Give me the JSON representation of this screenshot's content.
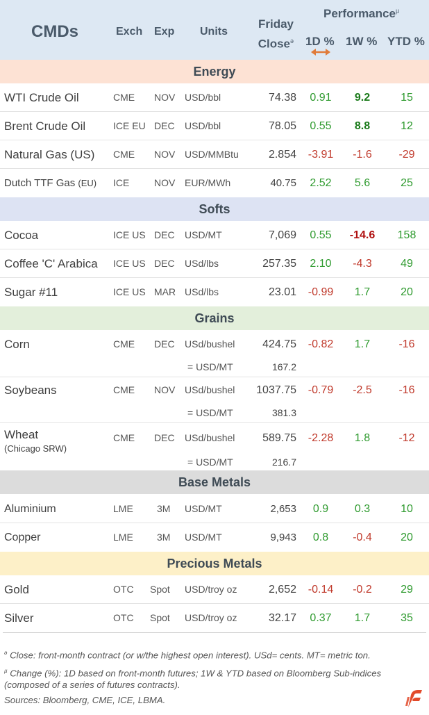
{
  "header": {
    "title": "CMDs",
    "exch": "Exch",
    "exp": "Exp",
    "units": "Units",
    "close_line1": "Friday",
    "close_line2": "Close",
    "close_marker": "ə",
    "performance": "Performance",
    "performance_marker": "µ",
    "d1": "1D %",
    "w1": "1W %",
    "ytd": "YTD %"
  },
  "colors": {
    "header_bg": "#dde8f3",
    "energy_bg": "#fde2d4",
    "softs_bg": "#dde3f3",
    "grains_bg": "#e3efdb",
    "base_metals_bg": "#dcdcdc",
    "precious_metals_bg": "#fdf0c8",
    "positive": "#2e9a2e",
    "negative": "#c0392b",
    "sort_arrow": "#e07b3a",
    "logo": "#e24a2a"
  },
  "sections": {
    "energy": "Energy",
    "softs": "Softs",
    "grains": "Grains",
    "base_metals": "Base Metals",
    "precious_metals": "Precious Metals"
  },
  "rows": {
    "wti": {
      "name": "WTI Crude Oil",
      "exch": "CME",
      "exp": "NOV",
      "units": "USD/bbl",
      "close": "74.38",
      "d1": "0.91",
      "w1": "9.2",
      "ytd": "15"
    },
    "brent": {
      "name": "Brent Crude Oil",
      "exch": "ICE EU",
      "exp": "DEC",
      "units": "USD/bbl",
      "close": "78.05",
      "d1": "0.55",
      "w1": "8.8",
      "ytd": "12"
    },
    "natgas": {
      "name": "Natural Gas (US)",
      "exch": "CME",
      "exp": "NOV",
      "units": "USD/MMBtu",
      "close": "2.854",
      "d1": "-3.91",
      "w1": "-1.6",
      "ytd": "-29"
    },
    "ttf": {
      "name": "Dutch TTF Gas",
      "name_suffix": "(EU)",
      "exch": "ICE",
      "exp": "NOV",
      "units": "EUR/MWh",
      "close": "40.75",
      "d1": "2.52",
      "w1": "5.6",
      "ytd": "25"
    },
    "cocoa": {
      "name": "Cocoa",
      "exch": "ICE US",
      "exp": "DEC",
      "units": "USD/MT",
      "close": "7,069",
      "d1": "0.55",
      "w1": "-14.6",
      "ytd": "158"
    },
    "coffee": {
      "name": "Coffee 'C' Arabica",
      "exch": "ICE US",
      "exp": "DEC",
      "units": "USd/lbs",
      "close": "257.35",
      "d1": "2.10",
      "w1": "-4.3",
      "ytd": "49"
    },
    "sugar": {
      "name": "Sugar #11",
      "exch": "ICE US",
      "exp": "MAR",
      "units": "USd/lbs",
      "close": "23.01",
      "d1": "-0.99",
      "w1": "1.7",
      "ytd": "20"
    },
    "corn": {
      "name": "Corn",
      "exch": "CME",
      "exp": "DEC",
      "units": "USd/bushel",
      "close": "424.75",
      "d1": "-0.82",
      "w1": "1.7",
      "ytd": "-16",
      "conv_units": "= USD/MT",
      "conv_close": "167.2"
    },
    "soybeans": {
      "name": "Soybeans",
      "exch": "CME",
      "exp": "NOV",
      "units": "USd/bushel",
      "close": "1037.75",
      "d1": "-0.79",
      "w1": "-2.5",
      "ytd": "-16",
      "conv_units": "= USD/MT",
      "conv_close": "381.3"
    },
    "wheat": {
      "name": "Wheat",
      "name_suffix": "(Chicago SRW)",
      "exch": "CME",
      "exp": "DEC",
      "units": "USd/bushel",
      "close": "589.75",
      "d1": "-2.28",
      "w1": "1.8",
      "ytd": "-12",
      "conv_units": "= USD/MT",
      "conv_close": "216.7"
    },
    "aluminium": {
      "name": "Aluminium",
      "exch": "LME",
      "exp": "3M",
      "units": "USD/MT",
      "close": "2,653",
      "d1": "0.9",
      "w1": "0.3",
      "ytd": "10"
    },
    "copper": {
      "name": "Copper",
      "exch": "LME",
      "exp": "3M",
      "units": "USD/MT",
      "close": "9,943",
      "d1": "0.8",
      "w1": "-0.4",
      "ytd": "20"
    },
    "gold": {
      "name": "Gold",
      "exch": "OTC",
      "exp": "Spot",
      "units": "USD/troy oz",
      "close": "2,652",
      "d1": "-0.14",
      "w1": "-0.2",
      "ytd": "29"
    },
    "silver": {
      "name": "Silver",
      "exch": "OTC",
      "exp": "Spot",
      "units": "USD/troy oz",
      "close": "32.17",
      "d1": "0.37",
      "w1": "1.7",
      "ytd": "35"
    }
  },
  "footnotes": {
    "close_marker": "ə",
    "close_note": " Close: front-month contract (or w/the highest open interest). USd= cents. MT= metric ton.",
    "change_marker": "µ",
    "change_note_1": " Change (%): 1D based on front-month futures; 1W & YTD based on Bloomberg Sub-indices",
    "change_note_2": "(composed of a series of futures contracts).",
    "sources": "Sources: Bloomberg, CME, ICE, LBMA."
  },
  "icons": {
    "sort": "double-arrow-icon",
    "logo": "brand-logo-icon"
  }
}
